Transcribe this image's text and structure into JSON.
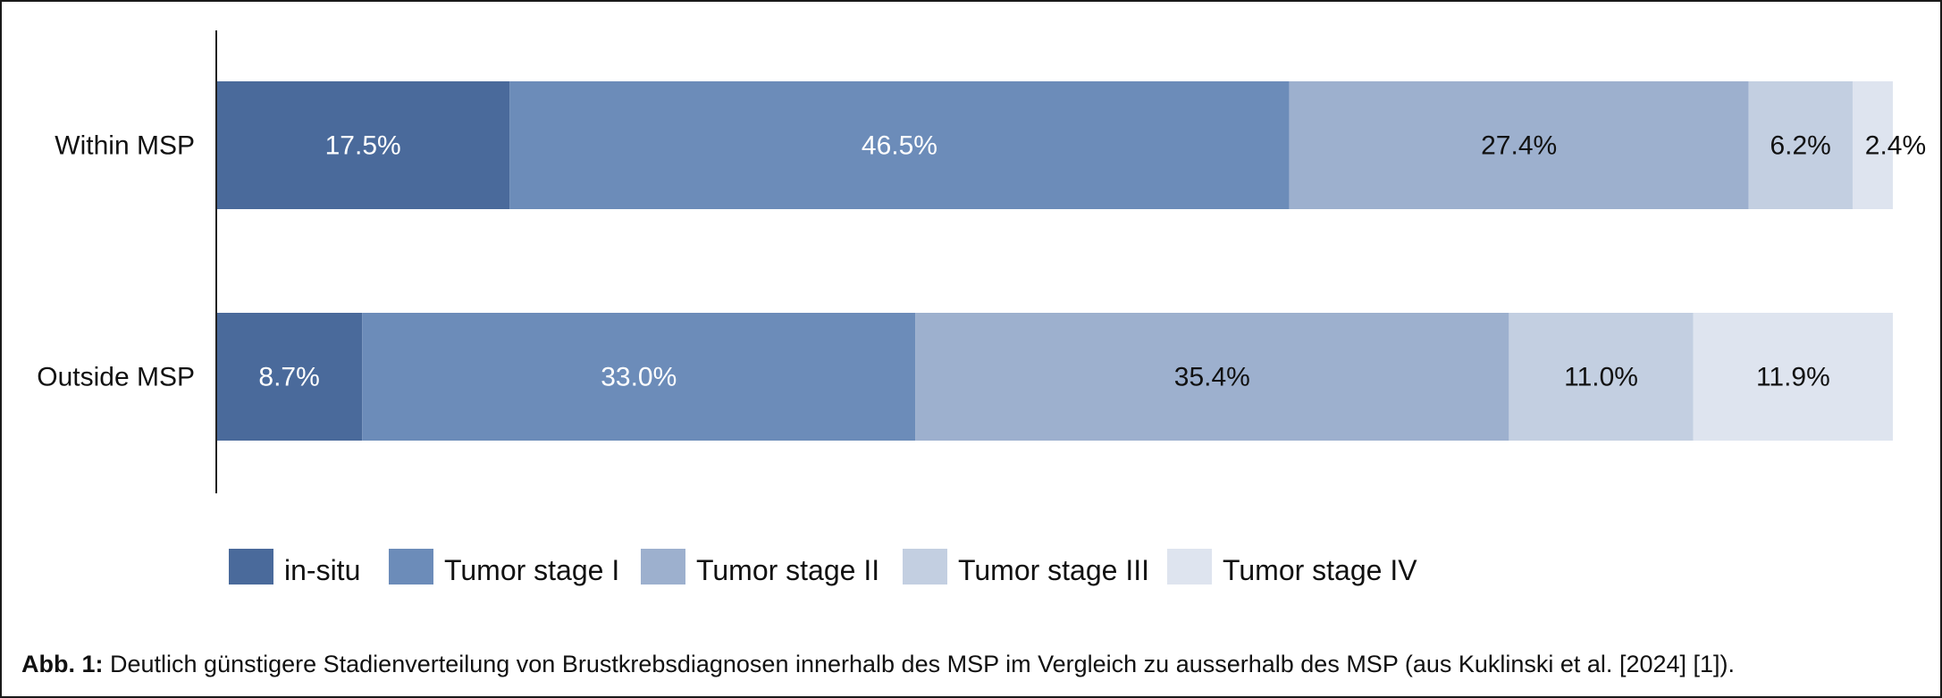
{
  "chart_data": {
    "type": "bar",
    "orientation": "horizontal",
    "stacked": true,
    "categories": [
      "Within MSP",
      "Outside MSP"
    ],
    "series": [
      {
        "name": "in-situ",
        "values": [
          17.5,
          8.7
        ],
        "labels": [
          "17.5%",
          "8.7%"
        ],
        "color": "#4a6a9b",
        "label_color": "#ffffff"
      },
      {
        "name": "Tumor stage I",
        "values": [
          46.5,
          33.0
        ],
        "labels": [
          "46.5%",
          "33.0%"
        ],
        "color": "#6c8cb9",
        "label_color": "#ffffff"
      },
      {
        "name": "Tumor stage II",
        "values": [
          27.4,
          35.4
        ],
        "labels": [
          "27.4%",
          "35.4%"
        ],
        "color": "#9db0ce",
        "label_color": "#111111"
      },
      {
        "name": "Tumor stage III",
        "values": [
          6.2,
          11.0
        ],
        "labels": [
          "6.2%",
          "11.0%"
        ],
        "color": "#c3cfe1",
        "label_color": "#111111"
      },
      {
        "name": "Tumor stage IV",
        "values": [
          2.4,
          11.9
        ],
        "labels": [
          "2.4%",
          "11.9%"
        ],
        "color": "#dee4ef",
        "label_color": "#111111"
      }
    ],
    "xlim": [
      0,
      100
    ],
    "grid": false,
    "legend_position": "bottom"
  },
  "caption": {
    "label": "Abb. 1:",
    "text": " Deutlich günstigere Stadienverteilung von Brustkrebsdiagnosen innerhalb des MSP im Vergleich zu ausserhalb des MSP (aus Kuklinski et al. [2024] [1])."
  }
}
